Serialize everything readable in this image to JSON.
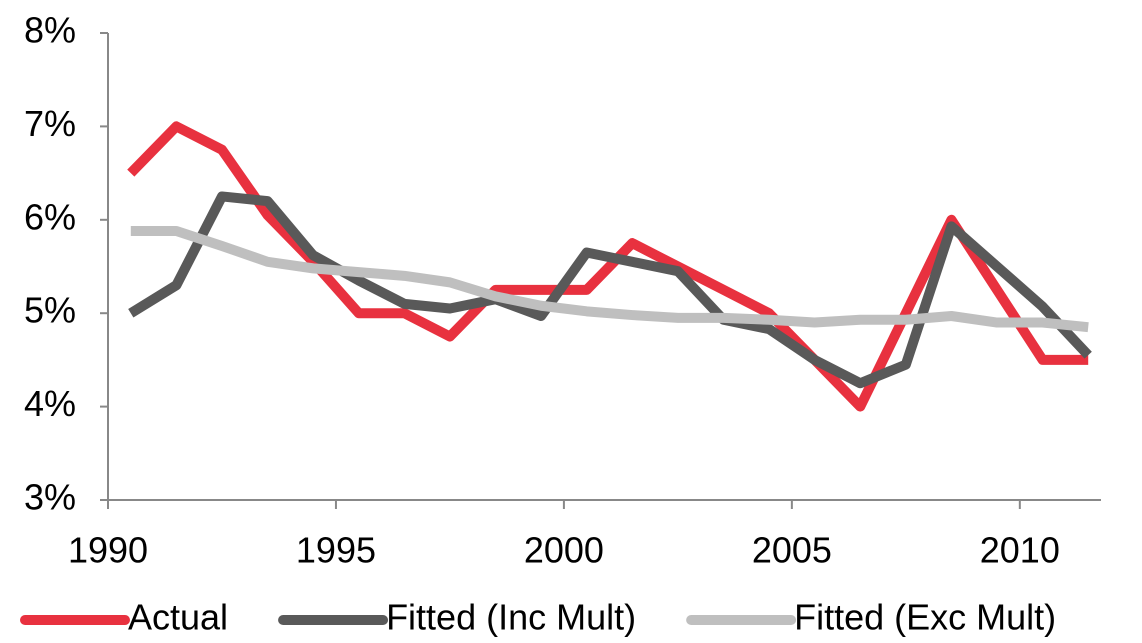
{
  "chart_data": {
    "type": "line",
    "x": [
      1990.5,
      1991.5,
      1992.5,
      1993.5,
      1994.5,
      1995.5,
      1996.5,
      1997.5,
      1998.5,
      1999.5,
      2000.5,
      2001.5,
      2002.5,
      2003.5,
      2004.5,
      2005.5,
      2006.5,
      2007.5,
      2008.5,
      2009.5,
      2010.5,
      2011.5
    ],
    "series": [
      {
        "name": "Actual",
        "color": "#e8313f",
        "values": [
          6.5,
          7.0,
          6.75,
          6.05,
          5.55,
          5.0,
          5.0,
          4.75,
          5.25,
          5.25,
          5.25,
          5.75,
          5.5,
          5.25,
          5.0,
          4.5,
          4.0,
          5.0,
          6.0,
          5.25,
          4.5,
          4.5
        ]
      },
      {
        "name": "Fitted (Inc Mult)",
        "color": "#595959",
        "values": [
          5.0,
          5.3,
          6.25,
          6.2,
          5.62,
          5.35,
          5.1,
          5.05,
          5.15,
          4.97,
          5.65,
          5.55,
          5.45,
          4.93,
          4.83,
          4.5,
          4.25,
          4.45,
          5.93,
          5.5,
          5.07,
          4.55
        ]
      },
      {
        "name": "Fitted (Exc Mult)",
        "color": "#bfbfbf",
        "values": [
          5.88,
          5.88,
          5.72,
          5.55,
          5.48,
          5.44,
          5.4,
          5.33,
          5.18,
          5.08,
          5.02,
          4.98,
          4.95,
          4.95,
          4.93,
          4.9,
          4.93,
          4.93,
          4.97,
          4.9,
          4.9,
          4.85
        ]
      }
    ],
    "xlim": [
      1990,
      2012
    ],
    "xticks": [
      1990,
      1995,
      2000,
      2005,
      2010
    ],
    "ylim": [
      3,
      8
    ],
    "yticks": [
      {
        "value": 3,
        "label": "3%"
      },
      {
        "value": 4,
        "label": "4%"
      },
      {
        "value": 5,
        "label": "5%"
      },
      {
        "value": 6,
        "label": "6%"
      },
      {
        "value": 7,
        "label": "7%"
      },
      {
        "value": 8,
        "label": "8%"
      }
    ],
    "legend": "bottom"
  }
}
